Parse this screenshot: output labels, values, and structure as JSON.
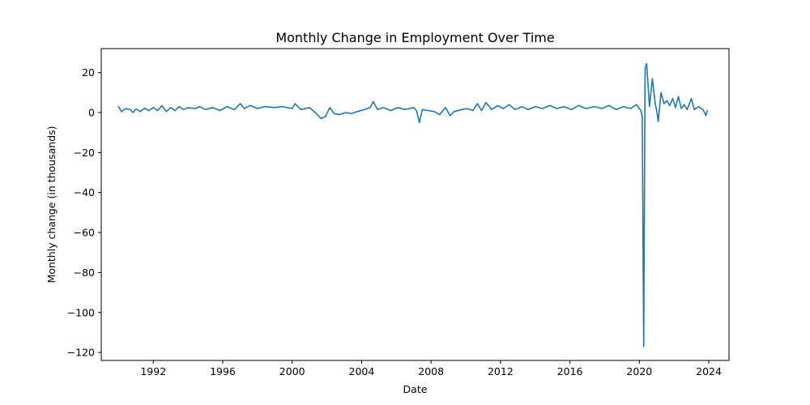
{
  "chart_data": {
    "type": "line",
    "title": "Monthly Change in Employment Over Time",
    "xlabel": "Date",
    "ylabel": "Monthly change (in thousands)",
    "xlim": [
      "1989-01-01",
      "2025-03-01"
    ],
    "ylim": [
      -124,
      32
    ],
    "xticks": [
      {
        "value": "1992-01-01",
        "label": "1992"
      },
      {
        "value": "1996-01-01",
        "label": "1996"
      },
      {
        "value": "2000-01-01",
        "label": "2000"
      },
      {
        "value": "2004-01-01",
        "label": "2004"
      },
      {
        "value": "2008-01-01",
        "label": "2008"
      },
      {
        "value": "2012-01-01",
        "label": "2012"
      },
      {
        "value": "2016-01-01",
        "label": "2016"
      },
      {
        "value": "2020-01-01",
        "label": "2020"
      },
      {
        "value": "2024-01-01",
        "label": "2024"
      }
    ],
    "yticks": [
      {
        "value": 20,
        "label": "20"
      },
      {
        "value": 0,
        "label": "0"
      },
      {
        "value": -20,
        "label": "−20"
      },
      {
        "value": -40,
        "label": "−40"
      },
      {
        "value": -60,
        "label": "−60"
      },
      {
        "value": -80,
        "label": "−80"
      },
      {
        "value": -100,
        "label": "−100"
      },
      {
        "value": -120,
        "label": "−120"
      }
    ],
    "grid": false,
    "series": [
      {
        "color": "#1f77b4",
        "points": [
          [
            "1990-01-01",
            3
          ],
          [
            "1990-03-01",
            0.5
          ],
          [
            "1990-06-01",
            2
          ],
          [
            "1990-09-01",
            1.5
          ],
          [
            "1990-11-01",
            0
          ],
          [
            "1991-01-01",
            1.8
          ],
          [
            "1991-04-01",
            0.5
          ],
          [
            "1991-07-01",
            2.2
          ],
          [
            "1991-10-01",
            1
          ],
          [
            "1992-01-01",
            2.5
          ],
          [
            "1992-04-01",
            1
          ],
          [
            "1992-07-01",
            3.5
          ],
          [
            "1992-10-01",
            0.5
          ],
          [
            "1993-01-01",
            2.5
          ],
          [
            "1993-04-01",
            1
          ],
          [
            "1993-07-01",
            3
          ],
          [
            "1993-10-01",
            1.5
          ],
          [
            "1994-01-01",
            2.5
          ],
          [
            "1994-06-01",
            2
          ],
          [
            "1994-09-01",
            3
          ],
          [
            "1995-01-01",
            1.5
          ],
          [
            "1995-06-01",
            2.5
          ],
          [
            "1995-11-01",
            1
          ],
          [
            "1996-04-01",
            3
          ],
          [
            "1996-09-01",
            1.5
          ],
          [
            "1997-01-01",
            4.5
          ],
          [
            "1997-04-01",
            2
          ],
          [
            "1997-08-01",
            3.5
          ],
          [
            "1998-01-01",
            2
          ],
          [
            "1998-06-01",
            3
          ],
          [
            "1999-01-01",
            2.5
          ],
          [
            "1999-06-01",
            3
          ],
          [
            "2000-01-01",
            2
          ],
          [
            "2000-03-01",
            4.5
          ],
          [
            "2000-07-01",
            1.5
          ],
          [
            "2001-01-01",
            2.5
          ],
          [
            "2001-05-01",
            0
          ],
          [
            "2001-09-01",
            -3
          ],
          [
            "2001-12-01",
            -2
          ],
          [
            "2002-03-01",
            2.5
          ],
          [
            "2002-06-01",
            -0.5
          ],
          [
            "2002-10-01",
            -1
          ],
          [
            "2003-02-01",
            0
          ],
          [
            "2003-06-01",
            -0.5
          ],
          [
            "2003-10-01",
            0.5
          ],
          [
            "2004-03-01",
            1.5
          ],
          [
            "2004-07-01",
            2.5
          ],
          [
            "2004-09-01",
            5.5
          ],
          [
            "2004-12-01",
            1.5
          ],
          [
            "2005-04-01",
            2.5
          ],
          [
            "2005-09-01",
            1
          ],
          [
            "2006-02-01",
            2.5
          ],
          [
            "2006-07-01",
            1.5
          ],
          [
            "2007-01-01",
            2.5
          ],
          [
            "2007-03-01",
            1
          ],
          [
            "2007-05-01",
            -5
          ],
          [
            "2007-07-01",
            1.5
          ],
          [
            "2007-11-01",
            1
          ],
          [
            "2008-03-01",
            0.5
          ],
          [
            "2008-07-01",
            -1
          ],
          [
            "2008-11-01",
            2.5
          ],
          [
            "2009-02-01",
            -1.5
          ],
          [
            "2009-05-01",
            0.5
          ],
          [
            "2009-10-01",
            1.5
          ],
          [
            "2010-02-01",
            2
          ],
          [
            "2010-06-01",
            1
          ],
          [
            "2010-09-01",
            4.5
          ],
          [
            "2010-12-01",
            1
          ],
          [
            "2011-03-01",
            5
          ],
          [
            "2011-07-01",
            1.5
          ],
          [
            "2011-11-01",
            3.5
          ],
          [
            "2012-03-01",
            2
          ],
          [
            "2012-07-01",
            4
          ],
          [
            "2012-11-01",
            1.5
          ],
          [
            "2013-04-01",
            3
          ],
          [
            "2013-08-01",
            1.5
          ],
          [
            "2014-01-01",
            3
          ],
          [
            "2014-06-01",
            2
          ],
          [
            "2014-11-01",
            3.5
          ],
          [
            "2015-04-01",
            2
          ],
          [
            "2015-09-01",
            3
          ],
          [
            "2016-02-01",
            1.5
          ],
          [
            "2016-07-01",
            3.5
          ],
          [
            "2016-12-01",
            2
          ],
          [
            "2017-06-01",
            3
          ],
          [
            "2017-11-01",
            2
          ],
          [
            "2018-04-01",
            3.5
          ],
          [
            "2018-09-01",
            1.5
          ],
          [
            "2019-02-01",
            3
          ],
          [
            "2019-07-01",
            2
          ],
          [
            "2019-11-01",
            4
          ],
          [
            "2020-02-01",
            1
          ],
          [
            "2020-03-01",
            -2
          ],
          [
            "2020-04-01",
            -117
          ],
          [
            "2020-05-01",
            22
          ],
          [
            "2020-06-01",
            24.5
          ],
          [
            "2020-08-01",
            3
          ],
          [
            "2020-10-01",
            17
          ],
          [
            "2020-12-01",
            4
          ],
          [
            "2021-01-01",
            1
          ],
          [
            "2021-02-01",
            -4.5
          ],
          [
            "2021-04-01",
            10
          ],
          [
            "2021-06-01",
            4.5
          ],
          [
            "2021-08-01",
            6
          ],
          [
            "2021-10-01",
            3.5
          ],
          [
            "2021-12-01",
            7
          ],
          [
            "2022-02-01",
            2.5
          ],
          [
            "2022-04-01",
            8
          ],
          [
            "2022-06-01",
            2
          ],
          [
            "2022-08-01",
            4
          ],
          [
            "2022-10-01",
            1.5
          ],
          [
            "2023-01-01",
            7
          ],
          [
            "2023-03-01",
            1.5
          ],
          [
            "2023-06-01",
            3
          ],
          [
            "2023-09-01",
            1.5
          ],
          [
            "2023-11-01",
            -1.5
          ],
          [
            "2023-12-01",
            1
          ]
        ]
      }
    ]
  }
}
